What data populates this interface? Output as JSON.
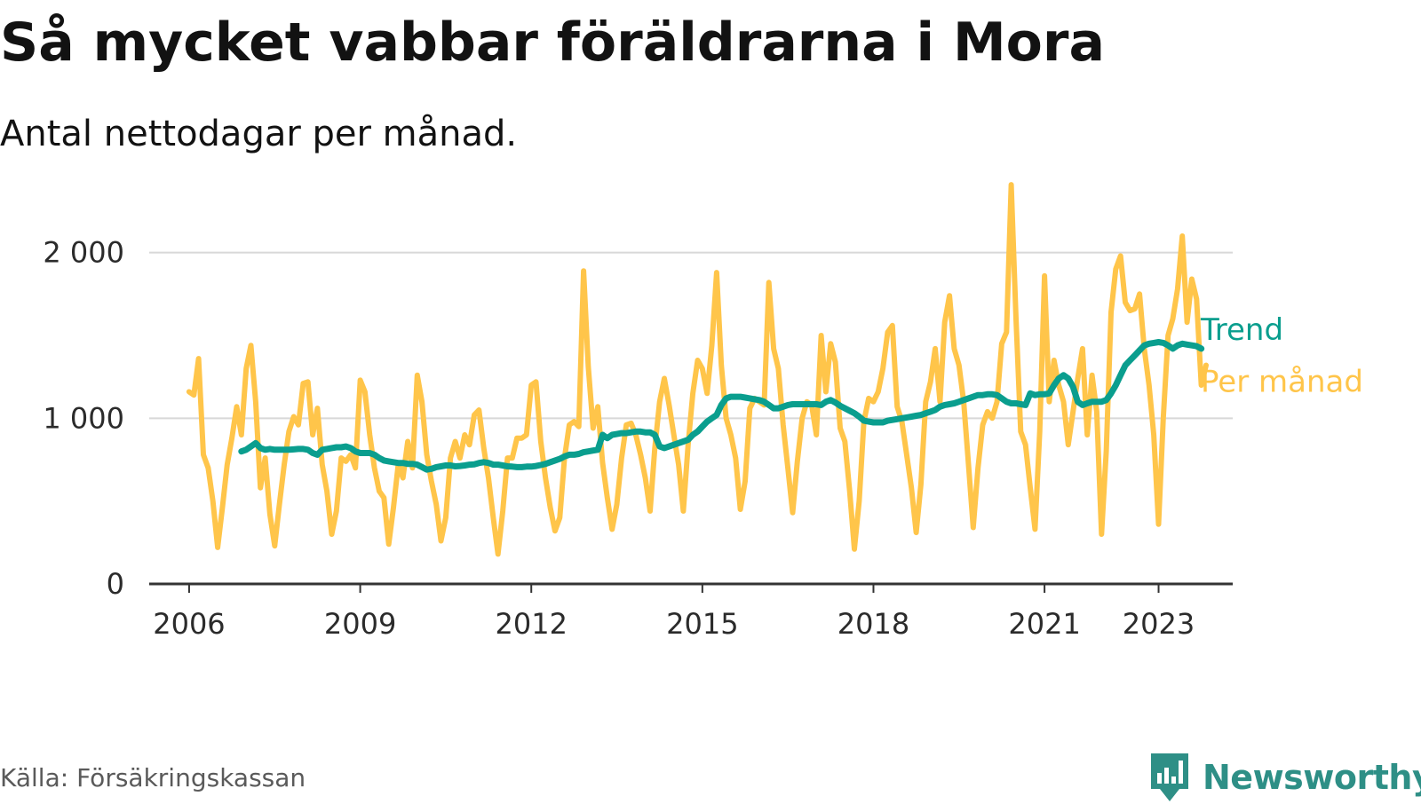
{
  "header": {
    "title": "Så mycket vabbar föräldrarna i Mora",
    "subtitle": "Antal nettodagar per månad."
  },
  "footer": {
    "source": "Källa: Försäkringskassan",
    "brand": "Newsworthy",
    "brand_icon": "bar-chart-badge-icon"
  },
  "colors": {
    "monthly": "#ffc54a",
    "trend": "#0a9e8e",
    "grid": "#d8d8d8",
    "axis": "#333333",
    "brand": "#2e8f86"
  },
  "chart_data": {
    "type": "line",
    "title": "Så mycket vabbar föräldrarna i Mora",
    "subtitle": "Antal nettodagar per månad.",
    "xlabel": "",
    "ylabel": "",
    "x_unit": "year",
    "xlim": [
      2005.3,
      2024.3
    ],
    "ylim": [
      0,
      2400
    ],
    "yticks": [
      0,
      1000,
      2000
    ],
    "ytick_labels": [
      "0",
      "1 000",
      "2 000"
    ],
    "xticks": [
      2006,
      2009,
      2012,
      2015,
      2018,
      2021,
      2023
    ],
    "xtick_labels": [
      "2006",
      "2009",
      "2012",
      "2015",
      "2018",
      "2021",
      "2023"
    ],
    "grid": true,
    "legend": "inline-right",
    "series": [
      {
        "name": "Per månad",
        "x_start": 2006.0,
        "step": 0.08333,
        "values": [
          1160,
          1140,
          1360,
          780,
          700,
          500,
          220,
          460,
          720,
          880,
          1070,
          900,
          1300,
          1440,
          1100,
          580,
          760,
          420,
          230,
          480,
          720,
          920,
          1010,
          960,
          1210,
          1220,
          900,
          1060,
          720,
          560,
          300,
          440,
          760,
          740,
          780,
          700,
          1230,
          1160,
          900,
          700,
          560,
          520,
          240,
          460,
          720,
          640,
          860,
          700,
          1260,
          1100,
          780,
          620,
          480,
          260,
          400,
          760,
          860,
          760,
          900,
          840,
          1020,
          1050,
          820,
          640,
          400,
          180,
          440,
          760,
          760,
          880,
          880,
          900,
          1200,
          1220,
          860,
          640,
          460,
          320,
          400,
          760,
          960,
          980,
          950,
          1890,
          1310,
          940,
          1070,
          730,
          520,
          330,
          480,
          760,
          960,
          970,
          900,
          780,
          640,
          440,
          820,
          1100,
          1240,
          1080,
          900,
          720,
          440,
          840,
          1150,
          1350,
          1300,
          1150,
          1440,
          1880,
          1320,
          1000,
          900,
          760,
          450,
          620,
          1060,
          1120,
          1100,
          1080,
          1820,
          1420,
          1300,
          960,
          700,
          430,
          740,
          1000,
          1100,
          1080,
          900,
          1500,
          1160,
          1450,
          1340,
          940,
          860,
          560,
          210,
          500,
          980,
          1120,
          1100,
          1160,
          1300,
          1520,
          1560,
          1070,
          980,
          780,
          580,
          310,
          600,
          1100,
          1220,
          1420,
          1100,
          1580,
          1740,
          1420,
          1320,
          1100,
          720,
          340,
          700,
          960,
          1040,
          1000,
          1100,
          1450,
          1520,
          2410,
          1600,
          920,
          840,
          580,
          330,
          920,
          1860,
          1100,
          1350,
          1200,
          1100,
          840,
          1040,
          1240,
          1420,
          900,
          1260,
          1040,
          300,
          800,
          1640,
          1900,
          1980,
          1700,
          1650,
          1660,
          1750,
          1420,
          1200,
          900,
          360,
          1000,
          1500,
          1600,
          1780,
          2100,
          1580,
          1840,
          1720,
          1200,
          1320
        ]
      },
      {
        "name": "Trend",
        "x_start": 2006.917,
        "step": 0.08333,
        "values": [
          800,
          810,
          830,
          850,
          820,
          810,
          815,
          810,
          810,
          810,
          810,
          812,
          815,
          815,
          810,
          790,
          780,
          810,
          815,
          820,
          825,
          825,
          830,
          820,
          800,
          790,
          790,
          790,
          780,
          760,
          745,
          740,
          735,
          730,
          730,
          725,
          725,
          720,
          705,
          690,
          695,
          705,
          710,
          715,
          715,
          710,
          712,
          715,
          720,
          722,
          730,
          735,
          730,
          720,
          720,
          715,
          710,
          708,
          705,
          705,
          708,
          708,
          712,
          718,
          725,
          735,
          745,
          755,
          770,
          780,
          780,
          785,
          795,
          800,
          805,
          810,
          900,
          880,
          900,
          905,
          910,
          910,
          915,
          920,
          920,
          915,
          915,
          900,
          830,
          820,
          830,
          840,
          850,
          860,
          870,
          900,
          920,
          950,
          980,
          1000,
          1020,
          1080,
          1120,
          1130,
          1130,
          1130,
          1125,
          1120,
          1115,
          1110,
          1100,
          1080,
          1060,
          1060,
          1070,
          1080,
          1085,
          1085,
          1085,
          1085,
          1085,
          1085,
          1080,
          1100,
          1110,
          1095,
          1075,
          1060,
          1045,
          1030,
          1010,
          985,
          980,
          975,
          975,
          975,
          985,
          990,
          995,
          1000,
          1005,
          1010,
          1015,
          1020,
          1030,
          1040,
          1050,
          1070,
          1080,
          1085,
          1090,
          1100,
          1110,
          1120,
          1130,
          1140,
          1140,
          1145,
          1145,
          1140,
          1120,
          1100,
          1090,
          1090,
          1085,
          1080,
          1150,
          1140,
          1145,
          1145,
          1150,
          1200,
          1240,
          1260,
          1240,
          1190,
          1100,
          1080,
          1090,
          1100,
          1100,
          1100,
          1110,
          1150,
          1200,
          1260,
          1320,
          1350,
          1380,
          1410,
          1440,
          1450,
          1455,
          1460,
          1455,
          1440,
          1420,
          1440,
          1450,
          1445,
          1440,
          1435,
          1420
        ]
      }
    ]
  }
}
